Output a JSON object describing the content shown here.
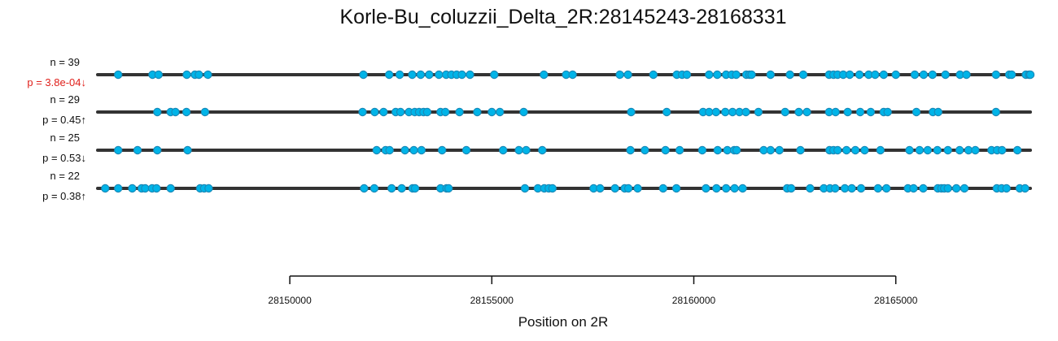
{
  "chart_data": {
    "type": "scatter",
    "title": "Korle-Bu_coluzzii_Delta_2R:28145243-28168331",
    "xlabel": "Position on 2R",
    "ylabel": "",
    "xlim": [
      28145243,
      28168331
    ],
    "xticks": [
      28150000,
      28155000,
      28160000,
      28165000
    ],
    "xtick_labels": [
      "28150000",
      "28155000",
      "28160000",
      "28165000"
    ],
    "grid": false,
    "legend": "none",
    "colors": {
      "point_fill": "#00b4e8",
      "point_stroke": "#1a8ab8",
      "line": "#333333",
      "significant_text": "#e0201b",
      "text": "#111111"
    },
    "series": [
      {
        "n_label": "n = 39",
        "p_label": "p = 3.8e-04↓",
        "significant": true,
        "x": [
          28145750,
          28146600,
          28146750,
          28147450,
          28147650,
          28147750,
          28147970,
          28151820,
          28152460,
          28152720,
          28153030,
          28153240,
          28153450,
          28153690,
          28153870,
          28154000,
          28154130,
          28154260,
          28154460,
          28155060,
          28156290,
          28156840,
          28157000,
          28158170,
          28158370,
          28159000,
          28159580,
          28159710,
          28159830,
          28160380,
          28160580,
          28160800,
          28160940,
          28161050,
          28161300,
          28161380,
          28161430,
          28161900,
          28162380,
          28162710,
          28163350,
          28163460,
          28163560,
          28163700,
          28163860,
          28164100,
          28164330,
          28164490,
          28164700,
          28165000,
          28165470,
          28165690,
          28165910,
          28166230,
          28166590,
          28166750,
          28167480,
          28167810,
          28167870,
          28168220,
          28168300,
          28168330
        ]
      },
      {
        "n_label": "n = 29",
        "p_label": "p = 0.45↑",
        "significant": false,
        "x": [
          28146720,
          28147050,
          28147170,
          28147440,
          28147900,
          28151800,
          28152100,
          28152320,
          28152620,
          28152740,
          28152950,
          28153090,
          28153200,
          28153310,
          28153400,
          28153730,
          28153850,
          28154200,
          28154640,
          28155000,
          28155200,
          28155790,
          28158450,
          28159330,
          28160230,
          28160380,
          28160550,
          28160780,
          28160960,
          28161130,
          28161290,
          28161600,
          28162260,
          28162600,
          28162800,
          28163350,
          28163510,
          28163810,
          28164120,
          28164380,
          28164700,
          28164800,
          28165510,
          28165920,
          28166050,
          28167480
        ]
      },
      {
        "n_label": "n = 25",
        "p_label": "p = 0.53↓",
        "significant": false,
        "x": [
          28145750,
          28146230,
          28146720,
          28147470,
          28152150,
          28152370,
          28152470,
          28152850,
          28153070,
          28153260,
          28153770,
          28154370,
          28155280,
          28155670,
          28155850,
          28156250,
          28158430,
          28158790,
          28159300,
          28159650,
          28160210,
          28160590,
          28160830,
          28161000,
          28161060,
          28161730,
          28161900,
          28162120,
          28162640,
          28163360,
          28163460,
          28163560,
          28163780,
          28164000,
          28164230,
          28164620,
          28165340,
          28165590,
          28165790,
          28166030,
          28166290,
          28166580,
          28166800,
          28166970,
          28167370,
          28167510,
          28167630,
          28168010
        ]
      },
      {
        "n_label": "n = 22",
        "p_label": "p = 0.38↑",
        "significant": false,
        "x": [
          28145430,
          28145750,
          28146100,
          28146330,
          28146420,
          28146590,
          28146700,
          28147050,
          28147780,
          28147880,
          28147990,
          28151840,
          28152090,
          28152520,
          28152770,
          28153040,
          28153100,
          28153730,
          28153880,
          28153930,
          28155820,
          28156140,
          28156300,
          28156410,
          28156500,
          28157520,
          28157680,
          28158050,
          28158290,
          28158380,
          28158610,
          28159240,
          28159570,
          28160300,
          28160560,
          28160800,
          28161010,
          28161210,
          28162310,
          28162410,
          28162880,
          28163220,
          28163370,
          28163500,
          28163740,
          28163910,
          28164140,
          28164560,
          28164770,
          28165300,
          28165440,
          28165680,
          28166040,
          28166130,
          28166200,
          28166290,
          28166500,
          28166700,
          28167500,
          28167620,
          28167740,
          28168070,
          28168200
        ]
      }
    ]
  }
}
